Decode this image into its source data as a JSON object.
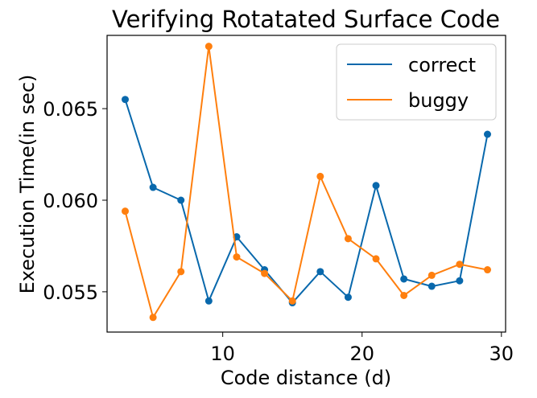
{
  "chart_data": {
    "type": "line",
    "title": "Verifying Rotatated Surface Code",
    "xlabel": "Code distance (d)",
    "ylabel": "Execution Time(in sec)",
    "xlim": [
      1.7,
      30.3
    ],
    "ylim": [
      0.0528,
      0.069
    ],
    "xticks": [
      10,
      20,
      30
    ],
    "yticks": [
      0.055,
      0.06,
      0.065
    ],
    "ytick_labels": [
      "0.055",
      "0.060",
      "0.065"
    ],
    "grid": false,
    "legend": "upper right",
    "markers": "circle",
    "x": [
      3,
      5,
      7,
      9,
      11,
      13,
      15,
      17,
      19,
      21,
      23,
      25,
      27,
      29
    ],
    "series": [
      {
        "name": "correct",
        "color": "#0868ac",
        "values": [
          0.0655,
          0.0607,
          0.06,
          0.0545,
          0.058,
          0.0562,
          0.0544,
          0.0561,
          0.0547,
          0.0608,
          0.0557,
          0.0553,
          0.0556,
          0.0636
        ]
      },
      {
        "name": "buggy",
        "color": "#ff7f0e",
        "values": [
          0.0594,
          0.0536,
          0.0561,
          0.0684,
          0.0569,
          0.056,
          0.0545,
          0.0613,
          0.0579,
          0.0568,
          0.0548,
          0.0559,
          0.0565,
          0.0562
        ]
      }
    ]
  }
}
